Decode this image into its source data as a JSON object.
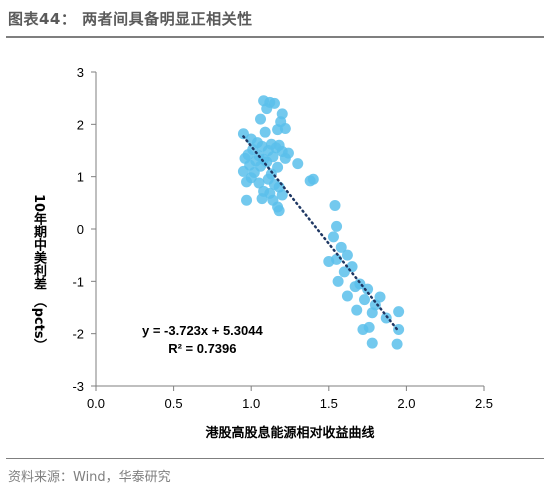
{
  "figure_title": "图表44：  两者间具备明显正相关性",
  "source_note": "资料来源：Wind，华泰研究",
  "chart_data": {
    "type": "scatter",
    "xlabel": "港股高股息能源相对收益曲线",
    "ylabel": "10年期中美利差 （pcts）",
    "xlim": [
      0.0,
      2.5
    ],
    "ylim": [
      -3,
      3
    ],
    "x_ticks": [
      "0.0",
      "0.5",
      "1.0",
      "1.5",
      "2.0",
      "2.5"
    ],
    "y_ticks": [
      "3",
      "2",
      "1",
      "0",
      "-1",
      "-2",
      "-3"
    ],
    "grid": false,
    "point_color": "#5bc0eb",
    "trendline": {
      "equation": "y = -3.723x + 5.3044",
      "r_squared": "R² = 0.7396",
      "slope": -3.723,
      "intercept": 5.3044,
      "x_range": [
        0.95,
        1.95
      ],
      "style": "dotted",
      "color": "#1f3864"
    },
    "points": [
      {
        "x": 1.08,
        "y": 2.45
      },
      {
        "x": 1.12,
        "y": 2.42
      },
      {
        "x": 1.15,
        "y": 2.4
      },
      {
        "x": 1.1,
        "y": 2.3
      },
      {
        "x": 1.2,
        "y": 2.2
      },
      {
        "x": 1.06,
        "y": 2.1
      },
      {
        "x": 1.19,
        "y": 2.05
      },
      {
        "x": 1.22,
        "y": 1.92
      },
      {
        "x": 1.17,
        "y": 1.9
      },
      {
        "x": 1.09,
        "y": 1.85
      },
      {
        "x": 0.95,
        "y": 1.82
      },
      {
        "x": 1.0,
        "y": 1.72
      },
      {
        "x": 1.04,
        "y": 1.65
      },
      {
        "x": 1.13,
        "y": 1.62
      },
      {
        "x": 1.18,
        "y": 1.6
      },
      {
        "x": 1.07,
        "y": 1.58
      },
      {
        "x": 1.16,
        "y": 1.55
      },
      {
        "x": 1.01,
        "y": 1.52
      },
      {
        "x": 1.11,
        "y": 1.5
      },
      {
        "x": 1.2,
        "y": 1.48
      },
      {
        "x": 1.24,
        "y": 1.45
      },
      {
        "x": 0.98,
        "y": 1.42
      },
      {
        "x": 1.05,
        "y": 1.4
      },
      {
        "x": 1.14,
        "y": 1.38
      },
      {
        "x": 0.96,
        "y": 1.35
      },
      {
        "x": 1.08,
        "y": 1.33
      },
      {
        "x": 1.22,
        "y": 1.35
      },
      {
        "x": 1.03,
        "y": 1.3
      },
      {
        "x": 1.1,
        "y": 1.28
      },
      {
        "x": 0.99,
        "y": 1.22
      },
      {
        "x": 1.06,
        "y": 1.2
      },
      {
        "x": 1.17,
        "y": 1.18
      },
      {
        "x": 1.3,
        "y": 1.25
      },
      {
        "x": 0.95,
        "y": 1.1
      },
      {
        "x": 1.02,
        "y": 1.08
      },
      {
        "x": 1.13,
        "y": 1.05
      },
      {
        "x": 1.0,
        "y": 0.98
      },
      {
        "x": 1.11,
        "y": 0.95
      },
      {
        "x": 1.4,
        "y": 0.95
      },
      {
        "x": 1.38,
        "y": 0.92
      },
      {
        "x": 0.97,
        "y": 0.9
      },
      {
        "x": 1.05,
        "y": 0.88
      },
      {
        "x": 1.15,
        "y": 0.85
      },
      {
        "x": 1.18,
        "y": 0.8
      },
      {
        "x": 1.08,
        "y": 0.72
      },
      {
        "x": 1.12,
        "y": 0.68
      },
      {
        "x": 1.2,
        "y": 0.65
      },
      {
        "x": 1.07,
        "y": 0.58
      },
      {
        "x": 1.14,
        "y": 0.55
      },
      {
        "x": 0.97,
        "y": 0.55
      },
      {
        "x": 1.17,
        "y": 0.42
      },
      {
        "x": 1.18,
        "y": 0.35
      },
      {
        "x": 1.54,
        "y": 0.45
      },
      {
        "x": 1.55,
        "y": 0.05
      },
      {
        "x": 1.53,
        "y": -0.15
      },
      {
        "x": 1.58,
        "y": -0.35
      },
      {
        "x": 1.5,
        "y": -0.62
      },
      {
        "x": 1.55,
        "y": -0.58
      },
      {
        "x": 1.62,
        "y": -0.5
      },
      {
        "x": 1.65,
        "y": -0.72
      },
      {
        "x": 1.6,
        "y": -0.82
      },
      {
        "x": 1.56,
        "y": -1.0
      },
      {
        "x": 1.67,
        "y": -1.1
      },
      {
        "x": 1.62,
        "y": -1.28
      },
      {
        "x": 1.7,
        "y": -1.05
      },
      {
        "x": 1.75,
        "y": -1.15
      },
      {
        "x": 1.73,
        "y": -1.35
      },
      {
        "x": 1.68,
        "y": -1.55
      },
      {
        "x": 1.83,
        "y": -1.3
      },
      {
        "x": 1.8,
        "y": -1.45
      },
      {
        "x": 1.78,
        "y": -1.6
      },
      {
        "x": 1.87,
        "y": -1.7
      },
      {
        "x": 1.95,
        "y": -1.58
      },
      {
        "x": 1.76,
        "y": -1.88
      },
      {
        "x": 1.72,
        "y": -1.92
      },
      {
        "x": 1.95,
        "y": -1.92
      },
      {
        "x": 1.78,
        "y": -2.18
      },
      {
        "x": 1.94,
        "y": -2.2
      }
    ]
  }
}
